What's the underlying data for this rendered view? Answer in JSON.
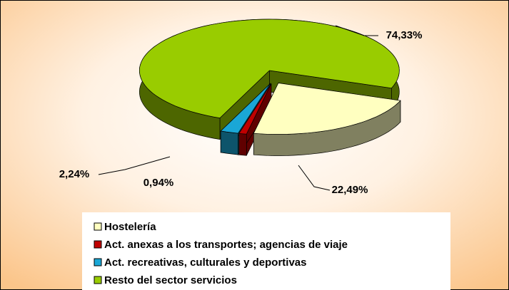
{
  "chart_data": {
    "type": "pie",
    "categories": [
      "Hostelería",
      "Act. anexas a los transportes; agencias de viaje",
      "Act. recreativas, culturales y deportivas",
      "Resto del sector servicios"
    ],
    "values": [
      22.49,
      0.94,
      2.24,
      74.33
    ],
    "value_labels": [
      "22,49%",
      "0,94%",
      "2,24%",
      "74,33%"
    ],
    "colors": [
      "#ffffc0",
      "#c00000",
      "#1aa7d6",
      "#99cc00"
    ],
    "legend": "bottom"
  }
}
